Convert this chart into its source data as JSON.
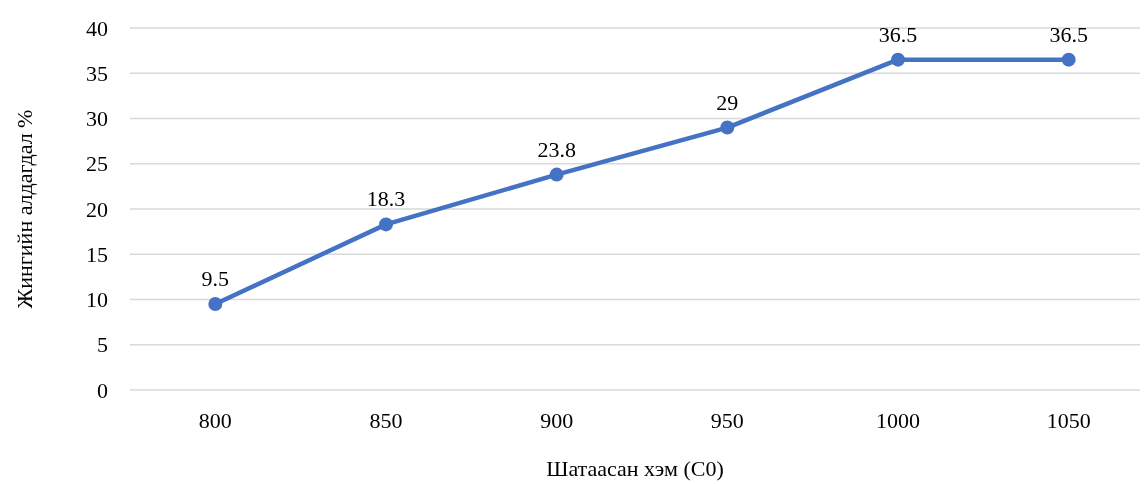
{
  "chart_data": {
    "type": "line",
    "xlabel": "Шатаасан хэм (С0)",
    "ylabel": "Жингийн алдагдал %",
    "categories": [
      "800",
      "850",
      "900",
      "950",
      "1000",
      "1050"
    ],
    "series": [
      {
        "color": "#4472c4",
        "values": [
          9.5,
          18.3,
          23.8,
          29,
          36.5,
          36.5
        ]
      }
    ],
    "ylim": [
      0,
      40
    ],
    "yticks": [
      0,
      5,
      10,
      15,
      20,
      25,
      30,
      35,
      40
    ],
    "grid": "y",
    "marker": "circle",
    "line_style": "solid",
    "data_labels": true
  }
}
